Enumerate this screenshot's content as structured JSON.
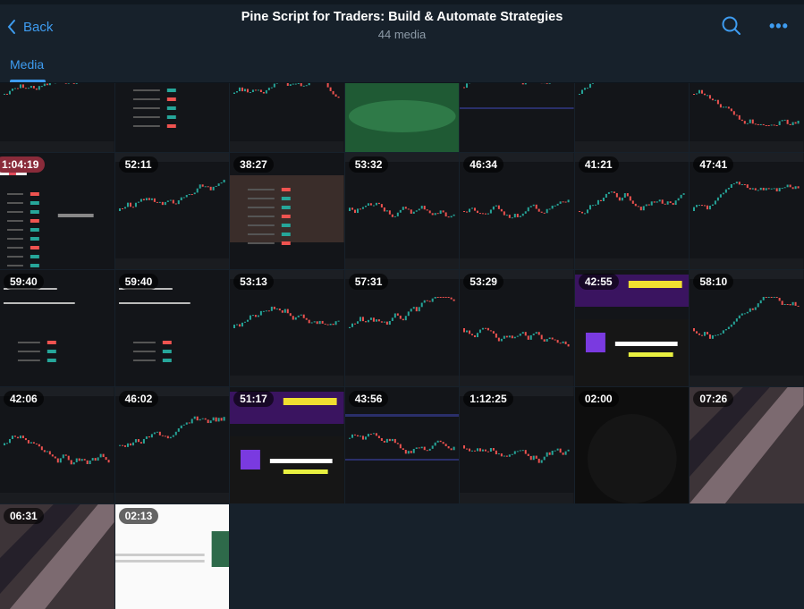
{
  "header": {
    "back_label": "Back",
    "title": "Pine Script for Traders: Build & Automate Strategies",
    "subtitle": "44 media",
    "search_icon": "search-icon",
    "more_icon": "more-icon"
  },
  "tabs": [
    {
      "label": "Media",
      "active": true
    }
  ],
  "colors": {
    "accent": "#3e9cf0",
    "background": "#17212b",
    "candle_up": "#26a69a",
    "candle_down": "#ef5350"
  },
  "media": [
    {
      "thumb": "chart",
      "duration": ""
    },
    {
      "thumb": "table",
      "duration": ""
    },
    {
      "thumb": "chart-panels",
      "duration": ""
    },
    {
      "thumb": "forest",
      "duration": ""
    },
    {
      "thumb": "code",
      "duration": ""
    },
    {
      "thumb": "chart",
      "duration": ""
    },
    {
      "thumb": "chart",
      "duration": ""
    },
    {
      "thumb": "form",
      "duration": "1:04:19",
      "watched": true
    },
    {
      "thumb": "chart",
      "duration": "52:11"
    },
    {
      "thumb": "table-brown",
      "duration": "38:27"
    },
    {
      "thumb": "chart",
      "duration": "53:32"
    },
    {
      "thumb": "chart",
      "duration": "46:34"
    },
    {
      "thumb": "chart",
      "duration": "41:21"
    },
    {
      "thumb": "chart",
      "duration": "47:41"
    },
    {
      "thumb": "doc",
      "duration": "59:40"
    },
    {
      "thumb": "doc",
      "duration": "59:40"
    },
    {
      "thumb": "chart",
      "duration": "53:13"
    },
    {
      "thumb": "chart",
      "duration": "57:31"
    },
    {
      "thumb": "chart",
      "duration": "53:29"
    },
    {
      "thumb": "promo",
      "duration": "42:55"
    },
    {
      "thumb": "chart",
      "duration": "58:10"
    },
    {
      "thumb": "chart",
      "duration": "42:06"
    },
    {
      "thumb": "chart",
      "duration": "46:02"
    },
    {
      "thumb": "promo",
      "duration": "51:17"
    },
    {
      "thumb": "code",
      "duration": "43:56"
    },
    {
      "thumb": "chart",
      "duration": "1:12:25"
    },
    {
      "thumb": "dark",
      "duration": "02:00"
    },
    {
      "thumb": "photo",
      "duration": "07:26"
    },
    {
      "thumb": "photo",
      "duration": "06:31"
    },
    {
      "thumb": "web",
      "duration": "02:13"
    }
  ]
}
